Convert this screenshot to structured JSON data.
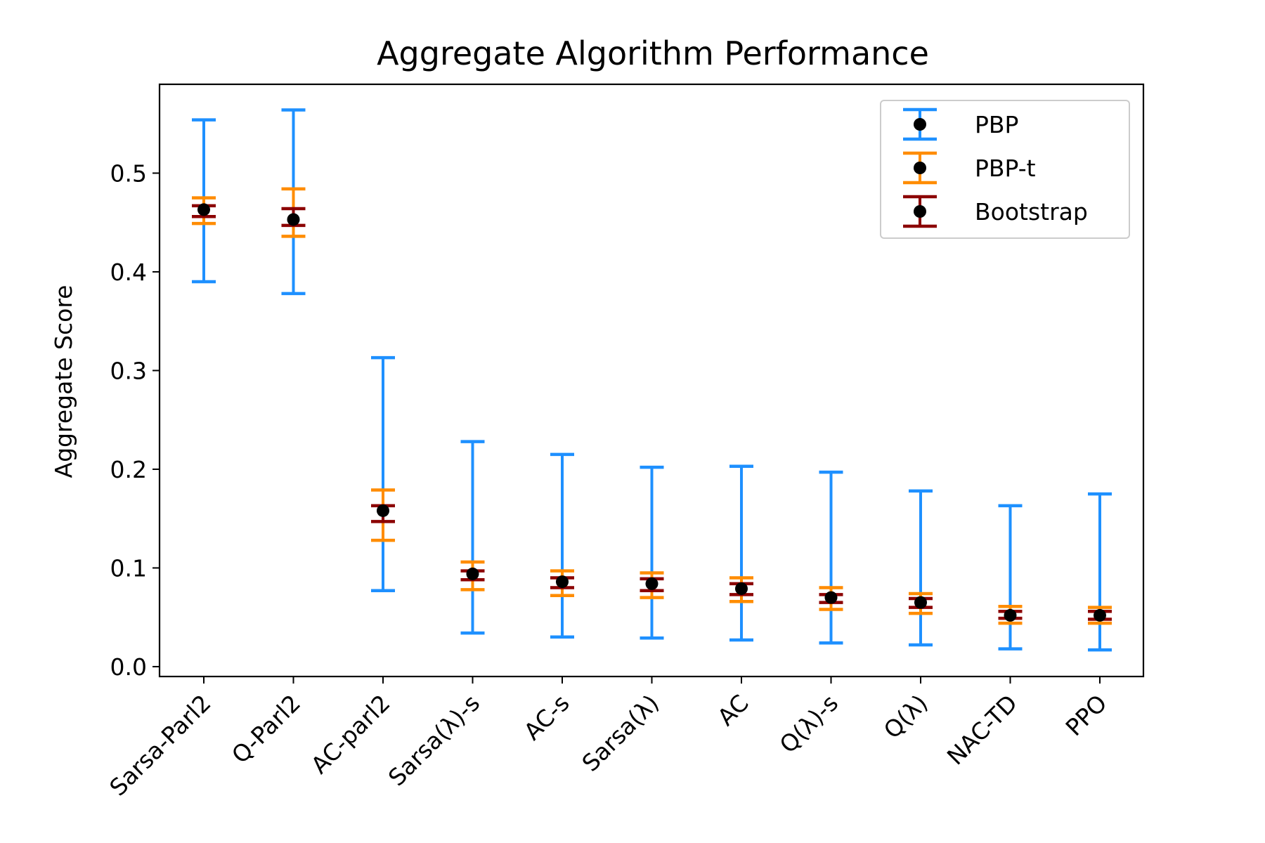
{
  "chart_data": {
    "type": "errorbar",
    "title": "Aggregate Algorithm Performance",
    "xlabel": "",
    "ylabel": "Aggregate Score",
    "ylim": [
      -0.01,
      0.59
    ],
    "yticks": [
      0.0,
      0.1,
      0.2,
      0.3,
      0.4,
      0.5
    ],
    "ytick_labels": [
      "0.0",
      "0.1",
      "0.2",
      "0.3",
      "0.4",
      "0.5"
    ],
    "categories": [
      "Sarsa-Parl2",
      "Q-Parl2",
      "AC-parl2",
      "Sarsa(λ)-s",
      "AC-s",
      "Sarsa(λ)",
      "AC",
      "Q(λ)-s",
      "Q(λ)",
      "NAC-TD",
      "PPO"
    ],
    "means": [
      0.463,
      0.453,
      0.158,
      0.094,
      0.086,
      0.084,
      0.079,
      0.07,
      0.065,
      0.052,
      0.052
    ],
    "series": [
      {
        "name": "PBP",
        "color": "#1e90ff",
        "lower": [
          0.39,
          0.378,
          0.077,
          0.034,
          0.03,
          0.029,
          0.027,
          0.024,
          0.022,
          0.018,
          0.017
        ],
        "upper": [
          0.554,
          0.564,
          0.313,
          0.228,
          0.215,
          0.202,
          0.203,
          0.197,
          0.178,
          0.163,
          0.175
        ]
      },
      {
        "name": "PBP-t",
        "color": "#ff8c00",
        "lower": [
          0.449,
          0.436,
          0.128,
          0.078,
          0.072,
          0.07,
          0.066,
          0.058,
          0.054,
          0.044,
          0.044
        ],
        "upper": [
          0.475,
          0.484,
          0.179,
          0.106,
          0.097,
          0.095,
          0.09,
          0.08,
          0.074,
          0.061,
          0.06
        ]
      },
      {
        "name": "Bootstrap",
        "color": "#8b0000",
        "lower": [
          0.456,
          0.447,
          0.147,
          0.088,
          0.08,
          0.077,
          0.073,
          0.065,
          0.06,
          0.049,
          0.048
        ],
        "upper": [
          0.467,
          0.464,
          0.163,
          0.097,
          0.09,
          0.089,
          0.084,
          0.073,
          0.069,
          0.056,
          0.056
        ]
      }
    ],
    "marker_color": "#000000",
    "legend_position": "upper-right",
    "grid": false
  }
}
